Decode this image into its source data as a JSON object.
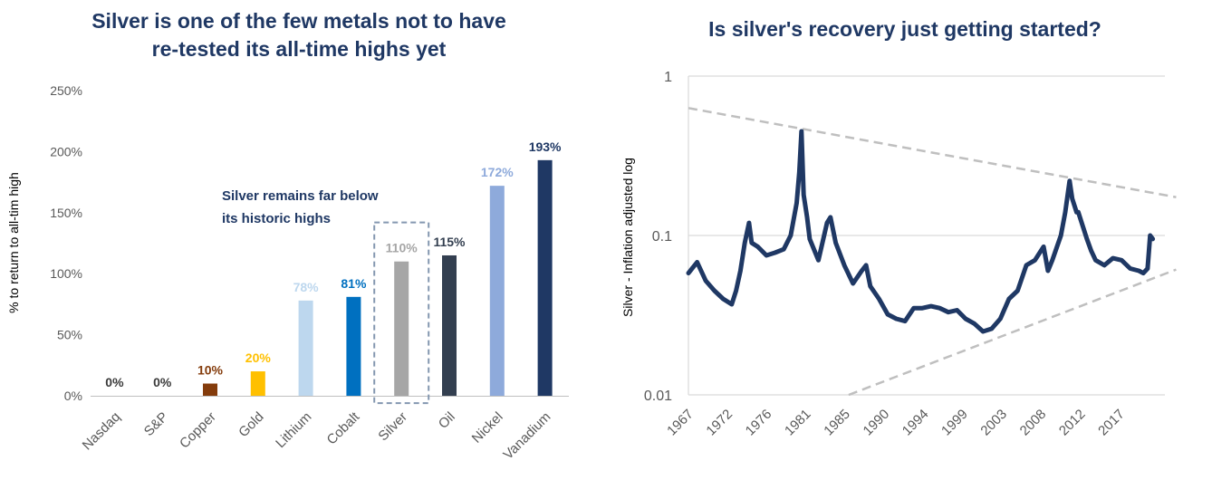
{
  "charts": {
    "left": {
      "title_line1": "Silver is one of the few metals not to have",
      "title_line2": "re-tested its all-time highs yet",
      "annotation_line1": "Silver remains far below",
      "annotation_line2": "its historic highs",
      "annotation_color": "#1f3864"
    },
    "right": {
      "title": "Is silver's recovery just getting started?"
    }
  },
  "chart_data": [
    {
      "type": "bar",
      "title": "Silver is one of the few metals not to have re-tested its all-time highs yet",
      "ylabel": "% to return to all-tim high",
      "ylim": [
        0,
        250
      ],
      "yticks": [
        "0%",
        "50%",
        "100%",
        "150%",
        "200%",
        "250%"
      ],
      "grid": false,
      "categories": [
        "Nasdaq",
        "S&P",
        "Copper",
        "Gold",
        "Lithium",
        "Cobalt",
        "Silver",
        "Oil",
        "Nickel",
        "Vanadium"
      ],
      "values": [
        0,
        0,
        10,
        20,
        78,
        81,
        110,
        115,
        172,
        193
      ],
      "labels": [
        "0%",
        "0%",
        "10%",
        "20%",
        "78%",
        "81%",
        "110%",
        "115%",
        "172%",
        "193%"
      ],
      "colors": [
        "#3a3a3a",
        "#3a3a3a",
        "#843c0c",
        "#ffc000",
        "#bdd7ee",
        "#0070c0",
        "#a6a6a6",
        "#333f50",
        "#8eaadb",
        "#1f3864"
      ],
      "label_colors": [
        "#3a3a3a",
        "#3a3a3a",
        "#843c0c",
        "#ffc000",
        "#bdd7ee",
        "#0070c0",
        "#a6a6a6",
        "#333f50",
        "#8eaadb",
        "#1f3864"
      ],
      "highlight": "Silver"
    },
    {
      "type": "line",
      "title": "Is silver's recovery just getting started?",
      "ylabel": "Silver - Inflation adjusted log",
      "yscale": "log",
      "ylim": [
        0.01,
        1
      ],
      "yticks": [
        "0.01",
        "0.1",
        "1"
      ],
      "xlim": [
        1967,
        2022
      ],
      "xticks": [
        "1967",
        "1972",
        "1976",
        "1981",
        "1985",
        "1990",
        "1994",
        "1999",
        "2003",
        "2008",
        "2012",
        "2017"
      ],
      "line_color": "#1f3864",
      "trend_color": "#bfbfbf",
      "x": [
        1967,
        1968,
        1969,
        1970,
        1971,
        1972,
        1972.5,
        1973,
        1973.5,
        1974,
        1974.3,
        1975,
        1976,
        1977,
        1978,
        1978.8,
        1979.5,
        1979.8,
        1980.05,
        1980.3,
        1980.7,
        1981,
        1982,
        1983,
        1983.4,
        1984,
        1985,
        1986,
        1987,
        1987.5,
        1988,
        1989,
        1990,
        1991,
        1992,
        1993,
        1994,
        1995,
        1996,
        1997,
        1998,
        1999,
        2000,
        2001,
        2002,
        2003,
        2004,
        2005,
        2006,
        2007,
        2008,
        2008.5,
        2009,
        2010,
        2010.5,
        2011,
        2011.3,
        2011.8,
        2012,
        2013,
        2013.5,
        2014,
        2015,
        2016,
        2017,
        2018,
        2019,
        2019.5,
        2020,
        2020.3,
        2020.6
      ],
      "y": [
        0.058,
        0.068,
        0.052,
        0.045,
        0.04,
        0.037,
        0.045,
        0.06,
        0.09,
        0.12,
        0.09,
        0.085,
        0.075,
        0.078,
        0.082,
        0.1,
        0.16,
        0.25,
        0.45,
        0.18,
        0.13,
        0.095,
        0.07,
        0.12,
        0.13,
        0.09,
        0.065,
        0.05,
        0.06,
        0.065,
        0.048,
        0.04,
        0.032,
        0.03,
        0.029,
        0.035,
        0.035,
        0.036,
        0.035,
        0.033,
        0.034,
        0.03,
        0.028,
        0.025,
        0.026,
        0.03,
        0.04,
        0.045,
        0.065,
        0.07,
        0.085,
        0.06,
        0.07,
        0.1,
        0.14,
        0.22,
        0.17,
        0.14,
        0.14,
        0.095,
        0.08,
        0.07,
        0.065,
        0.072,
        0.07,
        0.062,
        0.06,
        0.058,
        0.062,
        0.1,
        0.095
      ],
      "trendlines": [
        {
          "x": [
            1967,
            2021
          ],
          "y": [
            0.63,
            0.165
          ]
        },
        {
          "x": [
            1985.5,
            2021
          ],
          "y": [
            0.01,
            0.058
          ]
        }
      ]
    }
  ]
}
